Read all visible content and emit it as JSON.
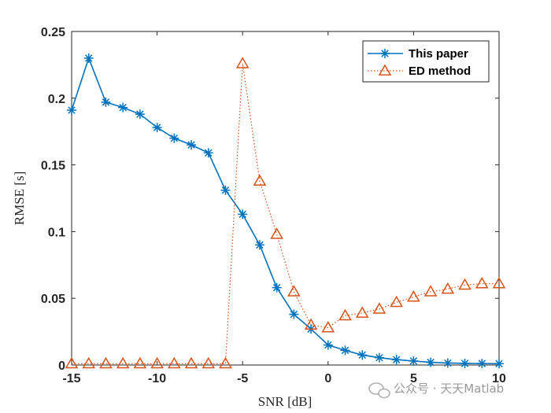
{
  "chart_data": {
    "type": "line",
    "title": "",
    "xlabel": "SNR [dB]",
    "ylabel": "RMSE [s]",
    "xlim": [
      -15,
      10
    ],
    "ylim": [
      0,
      0.25
    ],
    "xticks": [
      -15,
      -10,
      -5,
      0,
      5,
      10
    ],
    "xtick_labels": [
      "-15",
      "-10",
      "-5",
      "0",
      "5",
      "10"
    ],
    "yticks": [
      0,
      0.05,
      0.1,
      0.15,
      0.2,
      0.25
    ],
    "ytick_labels": [
      "0",
      "0.05",
      "0.1",
      "0.15",
      "0.2",
      "0.25"
    ],
    "grid": false,
    "legend_position": "top-right",
    "x": [
      -15,
      -14,
      -13,
      -12,
      -11,
      -10,
      -9,
      -8,
      -7,
      -6,
      -5,
      -4,
      -3,
      -2,
      -1,
      0,
      1,
      2,
      3,
      4,
      5,
      6,
      7,
      8,
      9,
      10
    ],
    "series": [
      {
        "name": "This paper",
        "color": "#0072BD",
        "line_style": "solid",
        "marker": "asterisk",
        "values": [
          0.191,
          0.23,
          0.197,
          0.193,
          0.188,
          0.178,
          0.17,
          0.165,
          0.159,
          0.131,
          0.113,
          0.09,
          0.058,
          0.038,
          0.027,
          0.015,
          0.011,
          0.0075,
          0.0055,
          0.004,
          0.003,
          0.002,
          0.0015,
          0.0012,
          0.0011,
          0.001
        ]
      },
      {
        "name": "ED method",
        "color": "#D95319",
        "line_style": "dotted",
        "marker": "triangle",
        "values": [
          0.001,
          0.001,
          0.001,
          0.001,
          0.001,
          0.001,
          0.001,
          0.001,
          0.001,
          0.001,
          0.226,
          0.138,
          0.098,
          0.055,
          0.03,
          0.028,
          0.037,
          0.039,
          0.042,
          0.047,
          0.051,
          0.055,
          0.057,
          0.06,
          0.061,
          0.061
        ]
      }
    ]
  },
  "watermark": {
    "icon": "wechat-icon",
    "text": "公众号 · 天天Matlab"
  }
}
